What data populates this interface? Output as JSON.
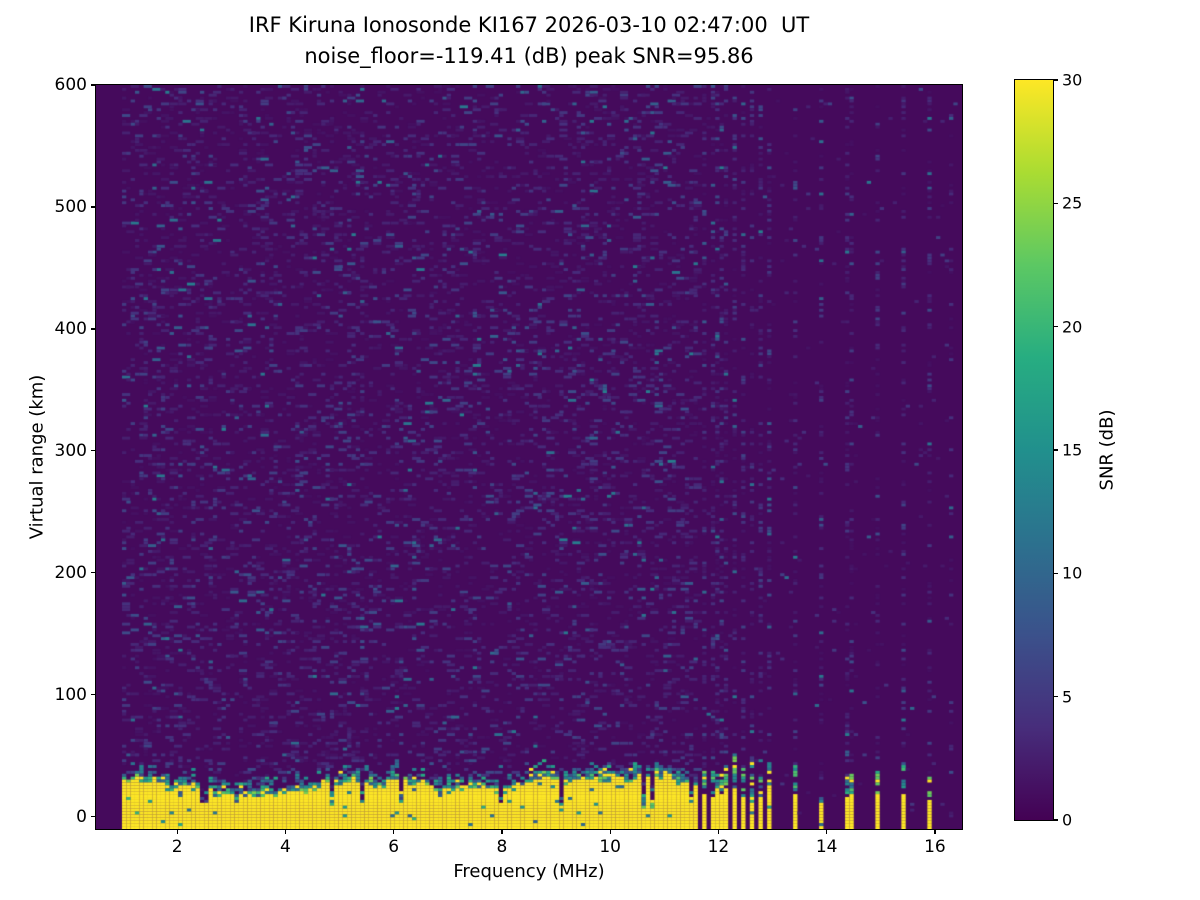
{
  "figure": {
    "background": "#ffffff",
    "text_color": "#000000"
  },
  "chart_data": {
    "type": "heatmap",
    "title": "IRF Kiruna Ionosonde KI167 2026-03-10 02:47:00  UT",
    "subtitle": "noise_floor=-119.41 (dB) peak SNR=95.86",
    "xlabel": "Frequency (MHz)",
    "ylabel": "Virtual range (km)",
    "colorbar_label": "SNR (dB)",
    "noise_floor_db": -119.41,
    "peak_snr_db": 95.86,
    "xlim": [
      0.5,
      16.5
    ],
    "ylim": [
      -10,
      600
    ],
    "clim": [
      0,
      30
    ],
    "xticks": [
      2,
      4,
      6,
      8,
      10,
      12,
      14,
      16
    ],
    "yticks": [
      0,
      100,
      200,
      300,
      400,
      500,
      600
    ],
    "colorbar_ticks": [
      0,
      5,
      10,
      15,
      20,
      25,
      30
    ],
    "grid": false,
    "legend": null,
    "colormap": "viridis",
    "colormap_stops": [
      [
        0.0,
        "#440154"
      ],
      [
        0.125,
        "#472d7b"
      ],
      [
        0.25,
        "#3b518b"
      ],
      [
        0.375,
        "#2c718e"
      ],
      [
        0.5,
        "#21908d"
      ],
      [
        0.625,
        "#27ad81"
      ],
      [
        0.75,
        "#5cc863"
      ],
      [
        0.875,
        "#aadc32"
      ],
      [
        1.0,
        "#fde725"
      ]
    ],
    "features": {
      "data_freq_range_mhz": [
        1.0,
        16.5
      ],
      "ground_echo": {
        "freq_range_mhz": [
          1.0,
          11.65
        ],
        "solid_top_km_typical": 25,
        "speckle_top_km_typical": 38,
        "description": "saturated ~30 dB yellow echo band from the bottom of the plot up to ~25-40 km with a ragged teal/green upper fringe and occasional narrow dark notches"
      },
      "background_noise": {
        "dash_probability": 0.17,
        "snr_db_range": [
          1,
          12
        ],
        "description": "sparse short horizontal blue/purple speckle dashes over the dark viridis background, 1-11.65 MHz, all heights"
      },
      "rfi_stripes": {
        "dense_columns_mhz": [
          11.71,
          11.87,
          12.02,
          12.17,
          12.31,
          12.46,
          12.64,
          12.81,
          12.95
        ],
        "sparse_columns_mhz": [
          13.41,
          13.93,
          14.42,
          14.94,
          15.43,
          15.93
        ],
        "faint_columns_mhz": [
          16.28
        ],
        "yellow_top_km_typical": 20,
        "speckle_top_km_typical": 42,
        "column_noise_dash_probability": 0.3,
        "description": "above 11.65 MHz the echo band breaks into discrete vertical yellow stripes with teal/green tops; the same frequency columns carry enhanced speckle noise over the full height"
      }
    }
  }
}
